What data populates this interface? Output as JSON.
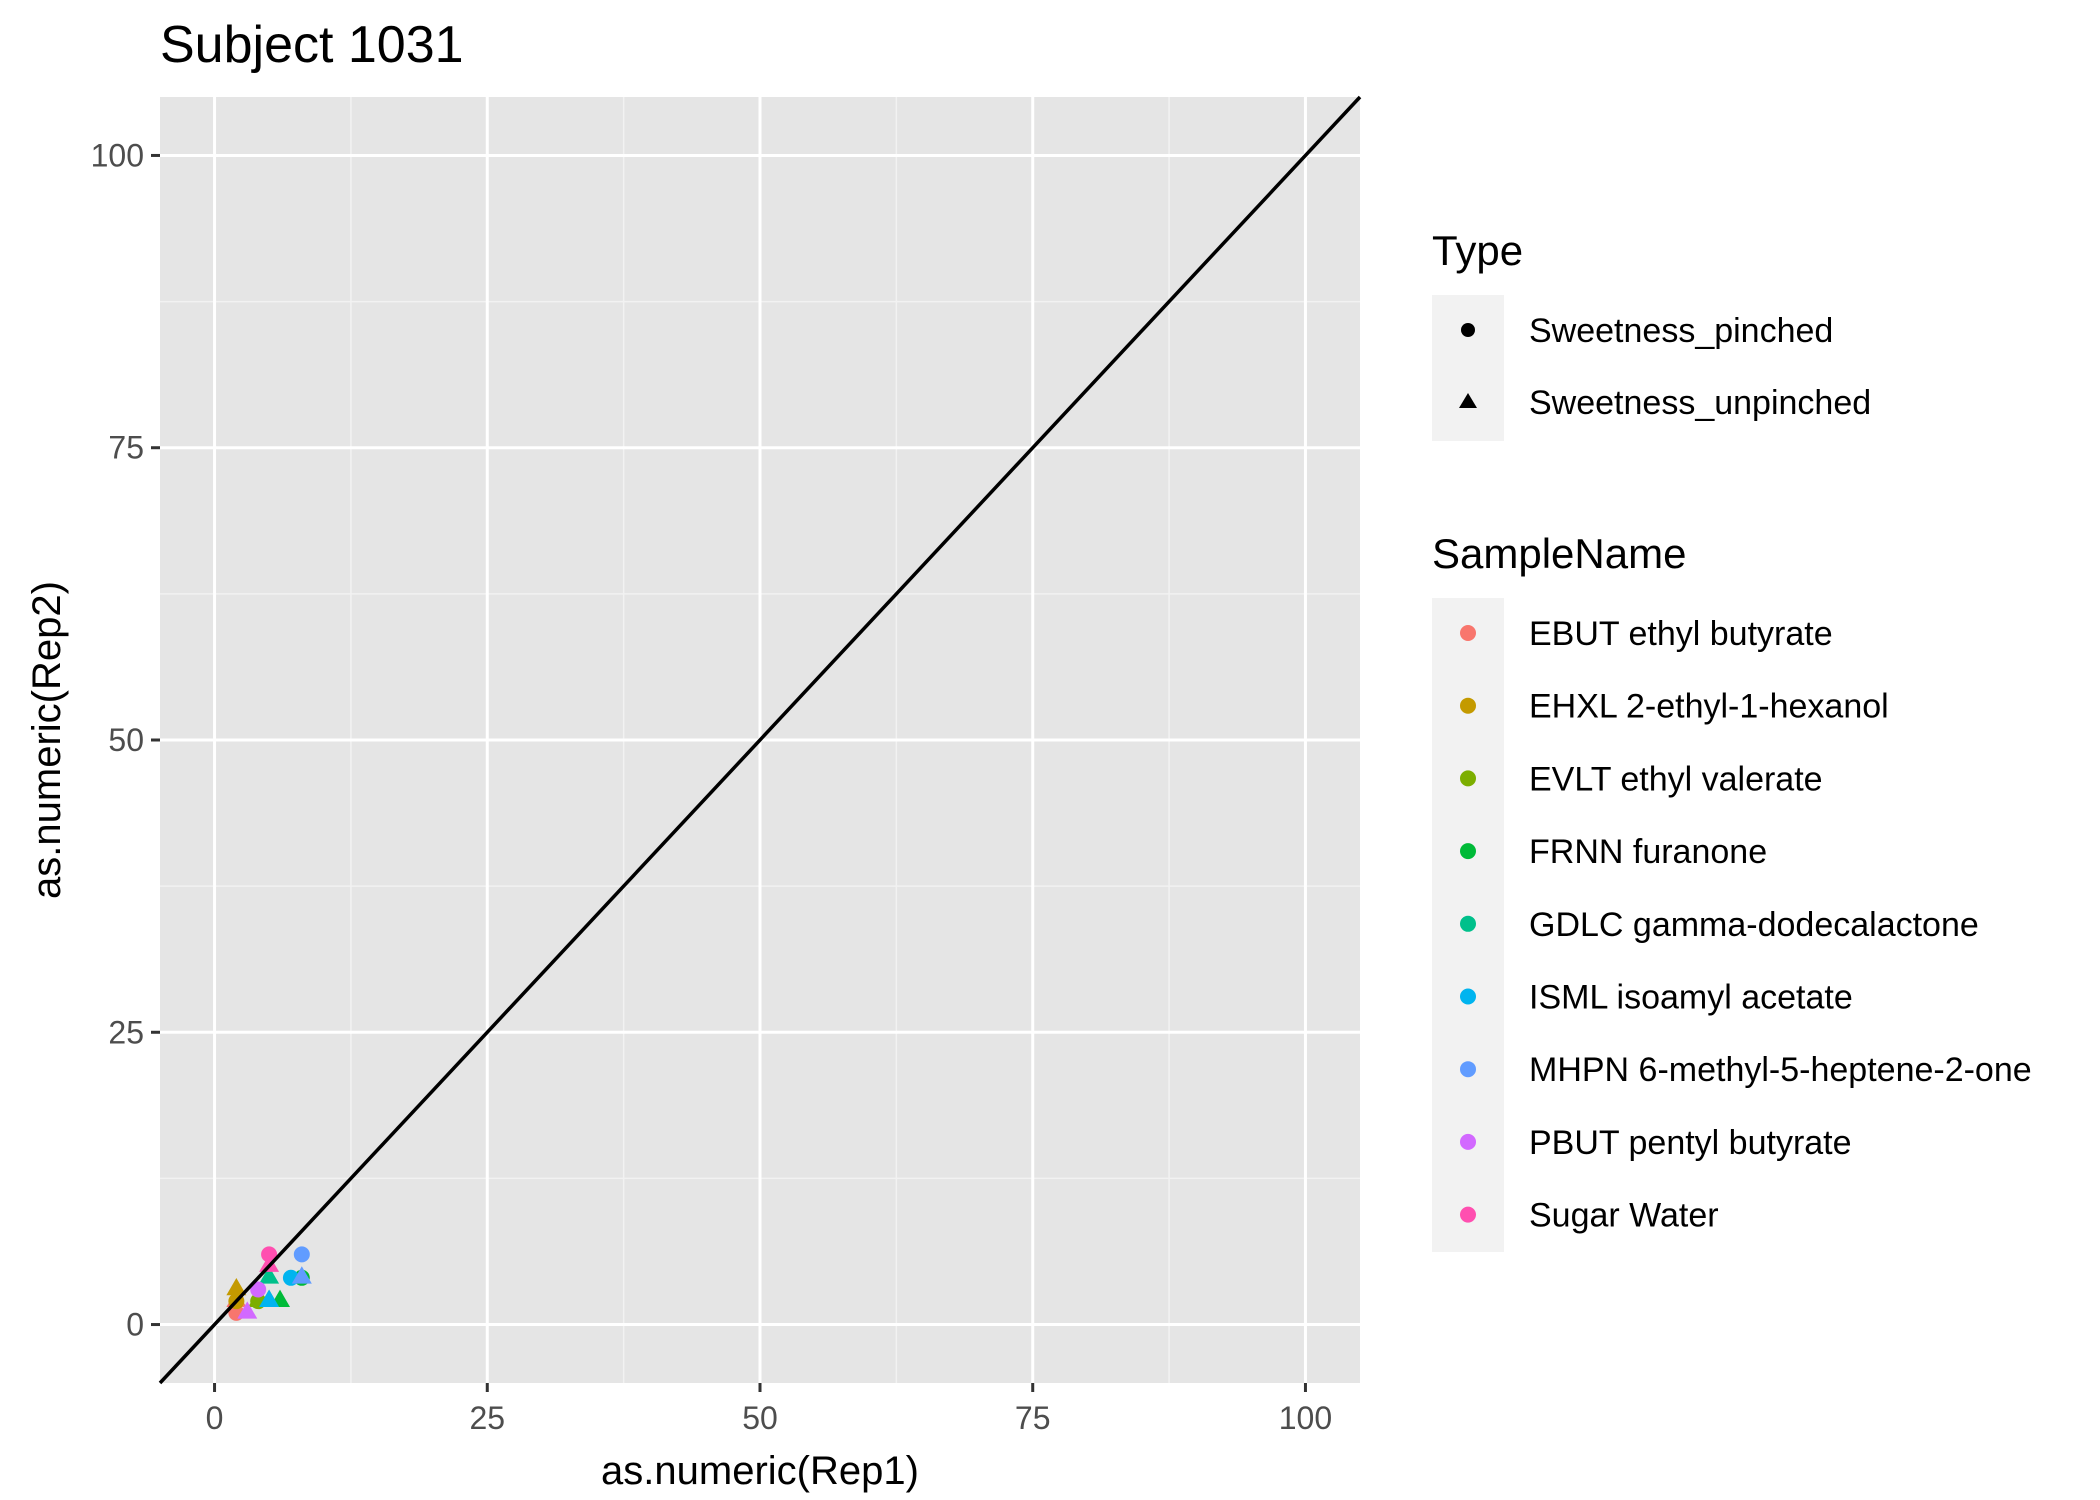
{
  "chart_data": {
    "type": "scatter",
    "title": "Subject 1031",
    "xlabel": "as.numeric(Rep1)",
    "ylabel": "as.numeric(Rep2)",
    "xlim": [
      -5,
      105
    ],
    "ylim": [
      -5,
      105
    ],
    "x_ticks": [
      "0",
      "25",
      "50",
      "75",
      "100"
    ],
    "y_ticks": [
      "0",
      "25",
      "50",
      "75",
      "100"
    ],
    "grid": true,
    "reference_line": {
      "slope": 1,
      "intercept": 0,
      "color": "#000000"
    },
    "legend_placement": "right",
    "shape_legend": {
      "title": "Type",
      "entries": [
        {
          "label": "Sweetness_pinched",
          "shape": "circle"
        },
        {
          "label": "Sweetness_unpinched",
          "shape": "triangle"
        }
      ]
    },
    "color_legend": {
      "title": "SampleName",
      "entries": [
        {
          "label": "EBUT ethyl butyrate",
          "color": "#F8766D"
        },
        {
          "label": "EHXL 2-ethyl-1-hexanol",
          "color": "#C49A00"
        },
        {
          "label": "EVLT ethyl valerate",
          "color": "#7CAE00"
        },
        {
          "label": "FRNN furanone",
          "color": "#00BA38"
        },
        {
          "label": "GDLC gamma-dodecalactone",
          "color": "#00C08B"
        },
        {
          "label": "ISML isoamyl acetate",
          "color": "#00B4EF"
        },
        {
          "label": "MHPN 6-methyl-5-heptene-2-one",
          "color": "#619CFF"
        },
        {
          "label": "PBUT pentyl butyrate",
          "color": "#D269FF"
        },
        {
          "label": "Sugar Water",
          "color": "#FF4FB0"
        }
      ]
    },
    "points": [
      {
        "x": 2,
        "y": 1,
        "sample": "EBUT ethyl butyrate",
        "type": "Sweetness_pinched"
      },
      {
        "x": 2,
        "y": 2,
        "sample": "EBUT ethyl butyrate",
        "type": "Sweetness_unpinched"
      },
      {
        "x": 2,
        "y": 2,
        "sample": "EHXL 2-ethyl-1-hexanol",
        "type": "Sweetness_pinched"
      },
      {
        "x": 2,
        "y": 3,
        "sample": "EHXL 2-ethyl-1-hexanol",
        "type": "Sweetness_unpinched"
      },
      {
        "x": 4,
        "y": 2,
        "sample": "EVLT ethyl valerate",
        "type": "Sweetness_pinched"
      },
      {
        "x": 4,
        "y": 2,
        "sample": "EVLT ethyl valerate",
        "type": "Sweetness_unpinched"
      },
      {
        "x": 8,
        "y": 4,
        "sample": "FRNN furanone",
        "type": "Sweetness_pinched"
      },
      {
        "x": 6,
        "y": 2,
        "sample": "FRNN furanone",
        "type": "Sweetness_unpinched"
      },
      {
        "x": 5,
        "y": 4,
        "sample": "GDLC gamma-dodecalactone",
        "type": "Sweetness_unpinched"
      },
      {
        "x": 5,
        "y": 2,
        "sample": "GDLC gamma-dodecalactone",
        "type": "Sweetness_unpinched"
      },
      {
        "x": 7,
        "y": 4,
        "sample": "ISML isoamyl acetate",
        "type": "Sweetness_pinched"
      },
      {
        "x": 5,
        "y": 2,
        "sample": "ISML isoamyl acetate",
        "type": "Sweetness_unpinched"
      },
      {
        "x": 8,
        "y": 6,
        "sample": "MHPN 6-methyl-5-heptene-2-one",
        "type": "Sweetness_pinched"
      },
      {
        "x": 8,
        "y": 4,
        "sample": "MHPN 6-methyl-5-heptene-2-one",
        "type": "Sweetness_unpinched"
      },
      {
        "x": 4,
        "y": 3,
        "sample": "PBUT pentyl butyrate",
        "type": "Sweetness_pinched"
      },
      {
        "x": 3,
        "y": 1,
        "sample": "PBUT pentyl butyrate",
        "type": "Sweetness_unpinched"
      },
      {
        "x": 5,
        "y": 6,
        "sample": "Sugar Water",
        "type": "Sweetness_pinched"
      },
      {
        "x": 5,
        "y": 5,
        "sample": "Sugar Water",
        "type": "Sweetness_unpinched"
      }
    ]
  }
}
